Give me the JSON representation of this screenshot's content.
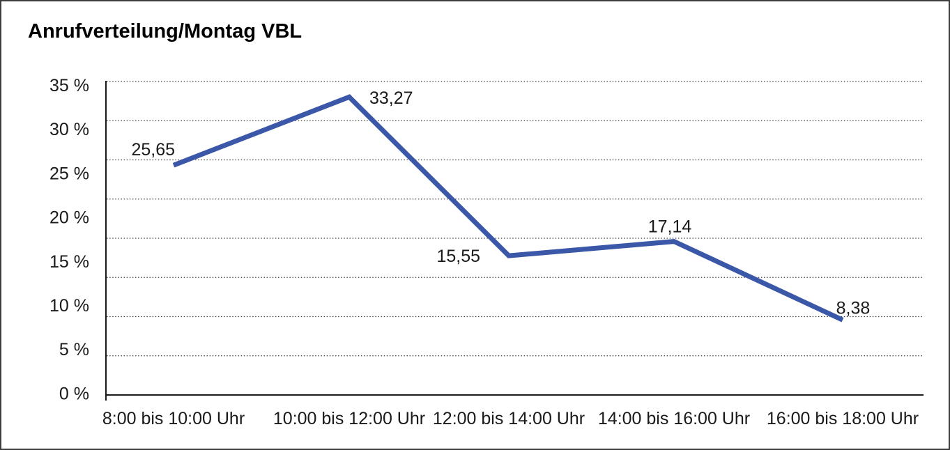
{
  "title": "Anrufverteilung/Montag VBL",
  "chart_data": {
    "type": "line",
    "title": "Anrufverteilung/Montag VBL",
    "categories": [
      "8:00 bis 10:00 Uhr",
      "10:00 bis 12:00 Uhr",
      "12:00 bis 14:00 Uhr",
      "14:00 bis 16:00 Uhr",
      "16:00 bis 18:00 Uhr"
    ],
    "values": [
      25.65,
      33.27,
      15.55,
      17.14,
      8.38
    ],
    "data_labels": [
      "25,65",
      "33,27",
      "15,55",
      "17,14",
      "8,38"
    ],
    "y_tick_labels": [
      "35 %",
      "30 %",
      "25 %",
      "20 %",
      "15 %",
      "10 %",
      "5 %",
      "0 %"
    ],
    "ylim": [
      0,
      35
    ],
    "y_tick_step_percent": 5,
    "xlabel": "",
    "ylabel": "",
    "legend": "none",
    "grid": "horizontal-dotted",
    "line_color": "#3a57a8",
    "axis_color": "#1a1a1a",
    "gridline_color": "#3f3f3f",
    "text_color": "#1a1a1a",
    "background": "#ffffff"
  }
}
